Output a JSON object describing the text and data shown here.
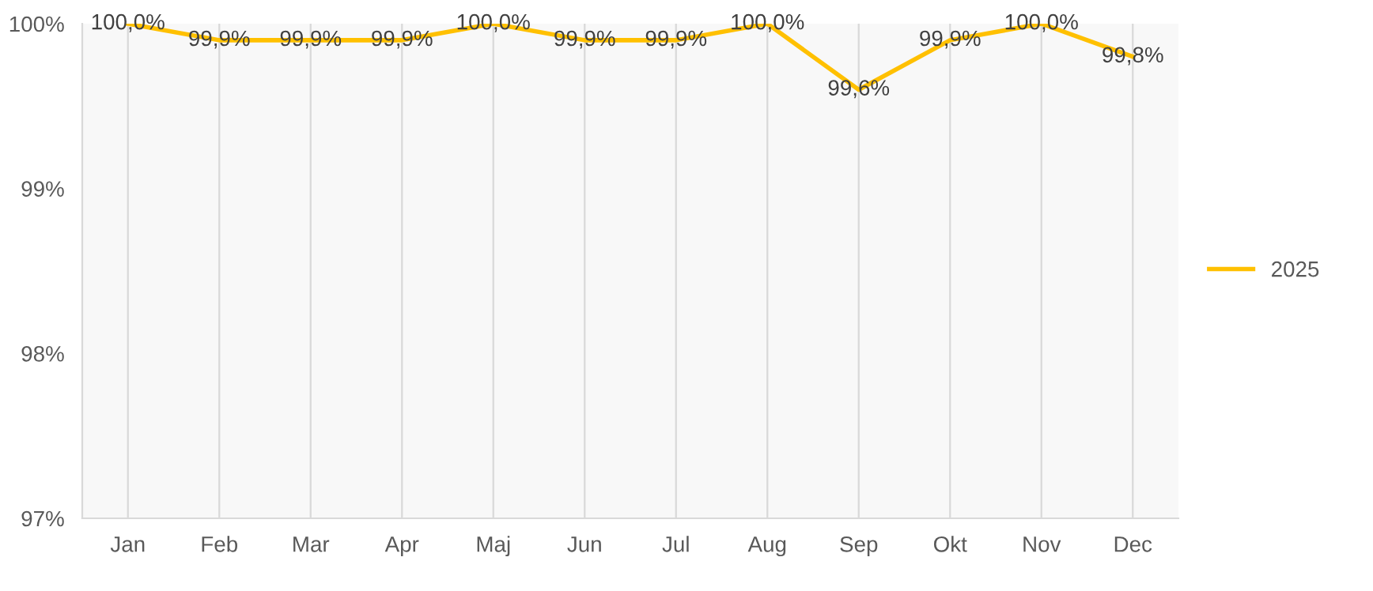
{
  "chart_data": {
    "type": "line",
    "categories": [
      "Jan",
      "Feb",
      "Mar",
      "Apr",
      "Maj",
      "Jun",
      "Jul",
      "Aug",
      "Sep",
      "Okt",
      "Nov",
      "Dec"
    ],
    "series": [
      {
        "name": "2025",
        "color": "#ffc000",
        "values": [
          100.0,
          99.9,
          99.9,
          99.9,
          100.0,
          99.9,
          99.9,
          100.0,
          99.6,
          99.9,
          100.0,
          99.8
        ],
        "value_labels": [
          "100,0%",
          "99,9%",
          "99,9%",
          "99,9%",
          "100,0%",
          "99,9%",
          "99,9%",
          "100,0%",
          "99,6%",
          "99,9%",
          "100,0%",
          "99,8%"
        ]
      }
    ],
    "ylim": [
      97,
      100
    ],
    "yticks": [
      {
        "value": 97,
        "label": "97%"
      },
      {
        "value": 98,
        "label": "98%"
      },
      {
        "value": 99,
        "label": "99%"
      },
      {
        "value": 100,
        "label": "100%"
      }
    ],
    "grid": "x",
    "legend": "right",
    "marker": "none",
    "line_style": "solid"
  }
}
